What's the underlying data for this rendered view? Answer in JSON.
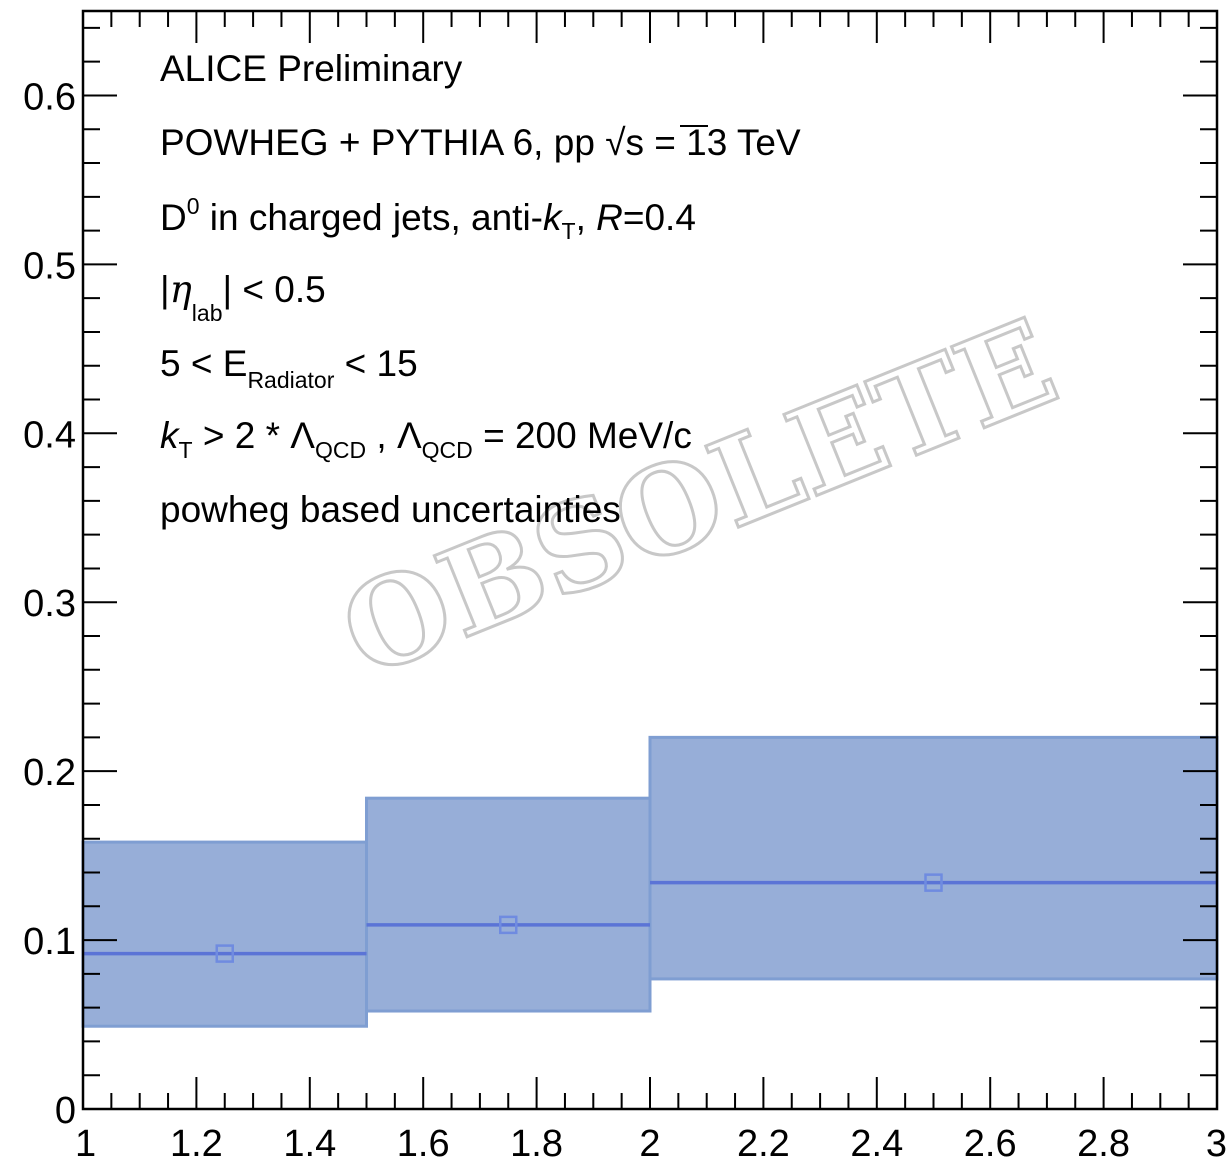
{
  "chart_data": {
    "type": "bar",
    "title": "",
    "xlabel": "",
    "ylabel": "",
    "xlim": [
      1,
      3
    ],
    "ylim": [
      0,
      0.65
    ],
    "x_ticks": [
      "1",
      "1.2",
      "1.4",
      "1.6",
      "1.8",
      "2",
      "2.2",
      "2.4",
      "2.6",
      "2.8",
      "3"
    ],
    "y_ticks": [
      "0",
      "0.1",
      "0.2",
      "0.3",
      "0.4",
      "0.5",
      "0.6"
    ],
    "bins": [
      {
        "x_low": 1.0,
        "x_high": 1.5,
        "x_center": 1.25,
        "value": 0.092,
        "band_low": 0.049,
        "band_high": 0.158
      },
      {
        "x_low": 1.5,
        "x_high": 2.0,
        "x_center": 1.75,
        "value": 0.109,
        "band_low": 0.058,
        "band_high": 0.184
      },
      {
        "x_low": 2.0,
        "x_high": 3.0,
        "x_center": 2.5,
        "value": 0.134,
        "band_low": 0.077,
        "band_high": 0.22
      }
    ],
    "colors": {
      "band_fill": "#97aed8",
      "band_edge": "#7f9ed2",
      "line": "#5b74d6",
      "marker": "#6f8be0"
    },
    "annotations": {
      "line1": "ALICE Preliminary",
      "line2_prefix": "POWHEG + PYTHIA 6, pp ",
      "line2_sqrt": "√s",
      "line2_suffix": " = 13 TeV",
      "line3_D": "D",
      "line3_sup": "0",
      "line3_mid": " in charged jets, anti-",
      "line3_k": "k",
      "line3_ksub": "T",
      "line3_comma": ", ",
      "line3_R": "R",
      "line3_end": "=0.4",
      "line4_open": "|",
      "line4_eta": "η",
      "line4_sub": "lab",
      "line4_end": "| < 0.5",
      "line5_start": "5 < E",
      "line5_sub": "Radiator",
      "line5_end": " < 15",
      "line6_k": "k",
      "line6_ksub": "T",
      "line6_mid": " > 2 * Λ",
      "line6_sub1": "QCD",
      "line6_mid2": " , Λ",
      "line6_sub2": "QCD",
      "line6_end": " = 200 MeV/c",
      "line7": "powheg based uncertainties"
    },
    "watermark": "OBSOLETE"
  }
}
